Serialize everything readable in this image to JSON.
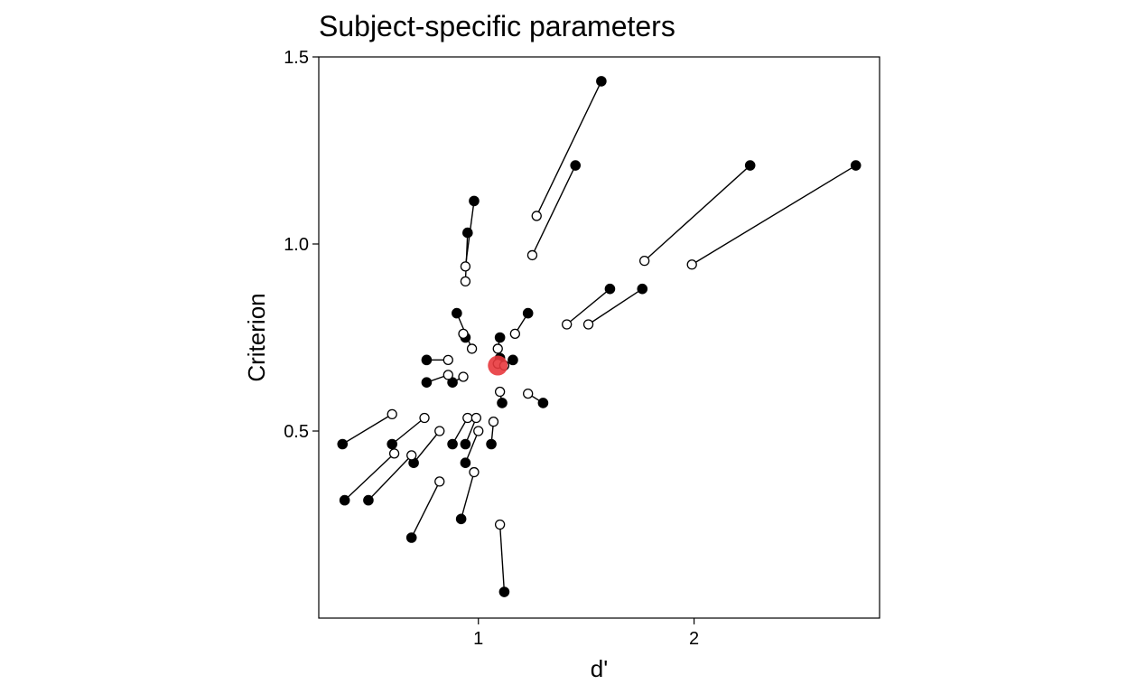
{
  "chart_data": {
    "type": "scatter",
    "title": "Subject-specific parameters",
    "xlabel": "d'",
    "ylabel": "Criterion",
    "xlim": [
      0.26,
      2.86
    ],
    "ylim": [
      0.0,
      1.5
    ],
    "x_ticks": [
      1,
      2
    ],
    "x_tick_labels": [
      "1",
      "2"
    ],
    "y_ticks": [
      0.5,
      1.0,
      1.5
    ],
    "y_tick_labels": [
      "0.5",
      "1.0",
      "1.5"
    ],
    "grid": false,
    "colors": {
      "filled_point": "#000000",
      "open_point": "#ffffff",
      "segment": "#000000",
      "mean_point": "#e8383d"
    },
    "mean": {
      "x": 1.09,
      "y": 0.675
    },
    "pairs": [
      {
        "filled": [
          1.57,
          1.435
        ],
        "open": [
          1.27,
          1.075
        ]
      },
      {
        "filled": [
          1.45,
          1.21
        ],
        "open": [
          1.25,
          0.97
        ]
      },
      {
        "filled": [
          2.26,
          1.21
        ],
        "open": [
          1.77,
          0.955
        ]
      },
      {
        "filled": [
          2.75,
          1.21
        ],
        "open": [
          1.99,
          0.945
        ]
      },
      {
        "filled": [
          0.98,
          1.115
        ],
        "open": [
          0.94,
          0.94
        ]
      },
      {
        "filled": [
          0.95,
          1.03
        ],
        "open": [
          0.94,
          0.9
        ]
      },
      {
        "filled": [
          1.61,
          0.88
        ],
        "open": [
          1.41,
          0.785
        ]
      },
      {
        "filled": [
          1.76,
          0.88
        ],
        "open": [
          1.51,
          0.785
        ]
      },
      {
        "filled": [
          0.9,
          0.815
        ],
        "open": [
          0.97,
          0.72
        ]
      },
      {
        "filled": [
          1.23,
          0.815
        ],
        "open": [
          1.17,
          0.76
        ]
      },
      {
        "filled": [
          0.94,
          0.75
        ],
        "open": [
          0.93,
          0.76
        ]
      },
      {
        "filled": [
          1.1,
          0.75
        ],
        "open": [
          1.09,
          0.72
        ]
      },
      {
        "filled": [
          0.76,
          0.69
        ],
        "open": [
          0.86,
          0.69
        ]
      },
      {
        "filled": [
          1.1,
          0.695
        ],
        "open": [
          1.09,
          0.68
        ]
      },
      {
        "filled": [
          1.16,
          0.69
        ],
        "open": [
          1.12,
          0.675
        ]
      },
      {
        "filled": [
          0.76,
          0.63
        ],
        "open": [
          0.86,
          0.65
        ]
      },
      {
        "filled": [
          0.88,
          0.63
        ],
        "open": [
          0.93,
          0.645
        ]
      },
      {
        "filled": [
          1.11,
          0.575
        ],
        "open": [
          1.1,
          0.605
        ]
      },
      {
        "filled": [
          1.3,
          0.575
        ],
        "open": [
          1.23,
          0.6
        ]
      },
      {
        "filled": [
          0.37,
          0.465
        ],
        "open": [
          0.6,
          0.545
        ]
      },
      {
        "filled": [
          0.6,
          0.465
        ],
        "open": [
          0.75,
          0.535
        ]
      },
      {
        "filled": [
          0.88,
          0.465
        ],
        "open": [
          0.95,
          0.535
        ]
      },
      {
        "filled": [
          0.94,
          0.465
        ],
        "open": [
          0.99,
          0.535
        ]
      },
      {
        "filled": [
          1.06,
          0.465
        ],
        "open": [
          1.07,
          0.525
        ]
      },
      {
        "filled": [
          0.7,
          0.415
        ],
        "open": [
          0.82,
          0.5
        ]
      },
      {
        "filled": [
          0.94,
          0.415
        ],
        "open": [
          1.0,
          0.5
        ]
      },
      {
        "filled": [
          0.38,
          0.315
        ],
        "open": [
          0.61,
          0.44
        ]
      },
      {
        "filled": [
          0.49,
          0.315
        ],
        "open": [
          0.69,
          0.435
        ]
      },
      {
        "filled": [
          0.92,
          0.265
        ],
        "open": [
          0.98,
          0.39
        ]
      },
      {
        "filled": [
          0.69,
          0.215
        ],
        "open": [
          0.82,
          0.365
        ]
      },
      {
        "filled": [
          1.12,
          0.07
        ],
        "open": [
          1.1,
          0.25
        ]
      }
    ]
  }
}
